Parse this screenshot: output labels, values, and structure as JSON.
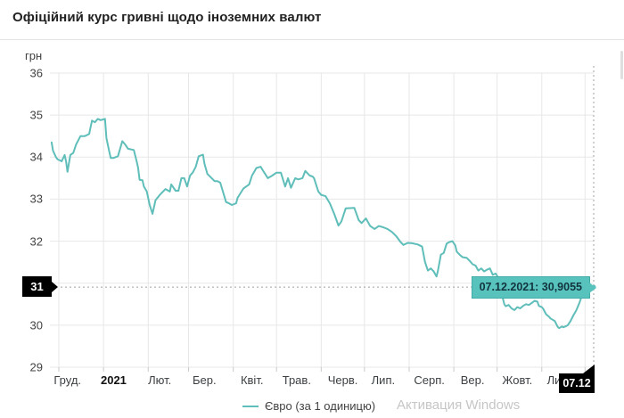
{
  "header": {
    "title": "Офіційний курс гривні щодо іноземних валют"
  },
  "y_axis": {
    "unit": "грн"
  },
  "legend": {
    "items": [
      {
        "label": "Євро (за 1 одиницю)",
        "color": "#5fbeb9"
      }
    ]
  },
  "watermark": {
    "text": "Активация Windows"
  },
  "colors": {
    "line": "#5fbeb9",
    "grid": "#e7e7e7",
    "tick": "#c9c9c9",
    "dashed": "#a0a0a0",
    "tooltip_bg": "#58c3bd",
    "tooltip_border": "#43aca6",
    "tooltip_text": "#12343f",
    "flag_bg": "#000000",
    "flag_text": "#ffffff",
    "axis_text": "#424242",
    "watermark_text": "#c6c6c6"
  },
  "chart_data": {
    "type": "line",
    "title": "Офіційний курс гривні щодо іноземних валют",
    "ylabel": "грн",
    "ylim": [
      29,
      36
    ],
    "y_ticks": [
      36,
      35,
      34,
      33,
      32,
      31,
      30,
      29
    ],
    "grid": true,
    "legend_position": "bottom",
    "x_axis_note": "day 0 = start of Груд. (Dec 2020); last point day 371 = 07.12.2021",
    "x_gridline_days": [
      0,
      31,
      62,
      90,
      121,
      151,
      182,
      212,
      243,
      274,
      304,
      335,
      365
    ],
    "x_tick_labels": [
      {
        "label": "Груд.",
        "day": 6,
        "bold": false
      },
      {
        "label": "2021",
        "day": 38,
        "bold": true
      },
      {
        "label": "Лют.",
        "day": 70,
        "bold": false
      },
      {
        "label": "Бер.",
        "day": 101,
        "bold": false
      },
      {
        "label": "Квіт.",
        "day": 134,
        "bold": false
      },
      {
        "label": "Трав.",
        "day": 165,
        "bold": false
      },
      {
        "label": "Черв.",
        "day": 197,
        "bold": false
      },
      {
        "label": "Лип.",
        "day": 225,
        "bold": false
      },
      {
        "label": "Серп.",
        "day": 257,
        "bold": false
      },
      {
        "label": "Вер.",
        "day": 287,
        "bold": false
      },
      {
        "label": "Жовт.",
        "day": 318,
        "bold": false
      },
      {
        "label": "Лист.",
        "day": 348,
        "bold": false
      }
    ],
    "highlight": {
      "day": 371,
      "value": 30.9055,
      "tooltip": "07.12.2021: 30,9055",
      "y_flag": "31",
      "x_flag": "07.12"
    },
    "series": [
      {
        "name": "Євро (за 1 одиницю)",
        "color": "#5fbeb9",
        "points": [
          [
            -5,
            34.35
          ],
          [
            -4,
            34.15
          ],
          [
            -2,
            34.0
          ],
          [
            -1,
            33.95
          ],
          [
            1,
            33.92
          ],
          [
            2,
            33.9
          ],
          [
            4,
            34.05
          ],
          [
            5,
            33.9
          ],
          [
            6,
            33.65
          ],
          [
            8,
            34.05
          ],
          [
            10,
            34.1
          ],
          [
            12,
            34.3
          ],
          [
            15,
            34.5
          ],
          [
            18,
            34.5
          ],
          [
            21,
            34.55
          ],
          [
            23,
            34.87
          ],
          [
            25,
            34.83
          ],
          [
            27,
            34.91
          ],
          [
            29,
            34.88
          ],
          [
            31,
            34.9
          ],
          [
            32,
            34.91
          ],
          [
            33,
            34.45
          ],
          [
            35,
            34.13
          ],
          [
            36,
            33.98
          ],
          [
            38,
            33.98
          ],
          [
            41,
            34.02
          ],
          [
            44,
            34.38
          ],
          [
            46,
            34.3
          ],
          [
            48,
            34.2
          ],
          [
            52,
            34.17
          ],
          [
            54,
            33.9
          ],
          [
            55,
            33.75
          ],
          [
            56,
            33.46
          ],
          [
            58,
            33.45
          ],
          [
            59,
            33.3
          ],
          [
            61,
            33.18
          ],
          [
            63,
            32.86
          ],
          [
            65,
            32.65
          ],
          [
            67,
            32.97
          ],
          [
            70,
            33.1
          ],
          [
            74,
            33.24
          ],
          [
            77,
            33.18
          ],
          [
            78,
            33.35
          ],
          [
            81,
            33.2
          ],
          [
            83,
            33.2
          ],
          [
            85,
            33.5
          ],
          [
            87,
            33.5
          ],
          [
            89,
            33.3
          ],
          [
            91,
            33.56
          ],
          [
            93,
            33.64
          ],
          [
            95,
            33.77
          ],
          [
            97,
            34.02
          ],
          [
            100,
            34.06
          ],
          [
            101,
            33.85
          ],
          [
            103,
            33.6
          ],
          [
            108,
            33.43
          ],
          [
            110,
            33.43
          ],
          [
            112,
            33.39
          ],
          [
            116,
            32.93
          ],
          [
            118,
            32.9
          ],
          [
            120,
            32.86
          ],
          [
            123,
            32.9
          ],
          [
            124,
            33.03
          ],
          [
            128,
            33.25
          ],
          [
            132,
            33.35
          ],
          [
            134,
            33.56
          ],
          [
            137,
            33.74
          ],
          [
            140,
            33.77
          ],
          [
            142,
            33.66
          ],
          [
            145,
            33.5
          ],
          [
            148,
            33.56
          ],
          [
            151,
            33.63
          ],
          [
            154,
            33.63
          ],
          [
            157,
            33.3
          ],
          [
            159,
            33.5
          ],
          [
            161,
            33.27
          ],
          [
            164,
            33.5
          ],
          [
            166,
            33.47
          ],
          [
            169,
            33.5
          ],
          [
            171,
            33.67
          ],
          [
            174,
            33.56
          ],
          [
            176,
            33.54
          ],
          [
            177,
            33.5
          ],
          [
            180,
            33.18
          ],
          [
            182,
            33.1
          ],
          [
            185,
            33.07
          ],
          [
            188,
            32.9
          ],
          [
            191,
            32.65
          ],
          [
            194,
            32.37
          ],
          [
            196,
            32.47
          ],
          [
            199,
            32.78
          ],
          [
            205,
            32.79
          ],
          [
            208,
            32.5
          ],
          [
            210,
            32.43
          ],
          [
            213,
            32.54
          ],
          [
            216,
            32.36
          ],
          [
            219,
            32.29
          ],
          [
            222,
            32.36
          ],
          [
            225,
            32.33
          ],
          [
            228,
            32.29
          ],
          [
            231,
            32.22
          ],
          [
            234,
            32.12
          ],
          [
            237,
            31.98
          ],
          [
            239,
            31.91
          ],
          [
            242,
            31.96
          ],
          [
            245,
            31.95
          ],
          [
            249,
            31.92
          ],
          [
            252,
            31.87
          ],
          [
            254,
            31.5
          ],
          [
            256,
            31.3
          ],
          [
            258,
            31.35
          ],
          [
            260,
            31.28
          ],
          [
            262,
            31.16
          ],
          [
            263,
            31.3
          ],
          [
            265,
            31.68
          ],
          [
            267,
            31.72
          ],
          [
            269,
            31.94
          ],
          [
            271,
            31.98
          ],
          [
            273,
            32.0
          ],
          [
            275,
            31.9
          ],
          [
            276,
            31.75
          ],
          [
            278,
            31.68
          ],
          [
            280,
            31.62
          ],
          [
            283,
            31.6
          ],
          [
            285,
            31.53
          ],
          [
            287,
            31.45
          ],
          [
            289,
            31.42
          ],
          [
            291,
            31.3
          ],
          [
            293,
            31.35
          ],
          [
            295,
            31.28
          ],
          [
            297,
            31.32
          ],
          [
            299,
            31.35
          ],
          [
            301,
            31.2
          ],
          [
            303,
            31.23
          ],
          [
            305,
            31.12
          ],
          [
            307,
            30.78
          ],
          [
            309,
            30.5
          ],
          [
            310,
            30.45
          ],
          [
            312,
            30.48
          ],
          [
            314,
            30.4
          ],
          [
            316,
            30.36
          ],
          [
            318,
            30.43
          ],
          [
            320,
            30.4
          ],
          [
            322,
            30.46
          ],
          [
            324,
            30.5
          ],
          [
            326,
            30.48
          ],
          [
            328,
            30.53
          ],
          [
            330,
            30.58
          ],
          [
            332,
            30.56
          ],
          [
            333,
            30.46
          ],
          [
            335,
            30.43
          ],
          [
            336,
            30.39
          ],
          [
            338,
            30.26
          ],
          [
            340,
            30.2
          ],
          [
            341,
            30.16
          ],
          [
            343,
            30.12
          ],
          [
            344,
            30.1
          ],
          [
            346,
            29.96
          ],
          [
            347,
            29.93
          ],
          [
            349,
            29.97
          ],
          [
            350,
            29.95
          ],
          [
            352,
            29.98
          ],
          [
            353,
            30.0
          ],
          [
            355,
            30.1
          ],
          [
            357,
            30.24
          ],
          [
            358,
            30.3
          ],
          [
            359,
            30.36
          ],
          [
            361,
            30.52
          ],
          [
            363,
            30.72
          ],
          [
            364,
            30.82
          ],
          [
            366,
            30.88
          ],
          [
            368,
            30.86
          ],
          [
            370,
            30.88
          ],
          [
            371,
            30.9055
          ]
        ]
      }
    ]
  }
}
